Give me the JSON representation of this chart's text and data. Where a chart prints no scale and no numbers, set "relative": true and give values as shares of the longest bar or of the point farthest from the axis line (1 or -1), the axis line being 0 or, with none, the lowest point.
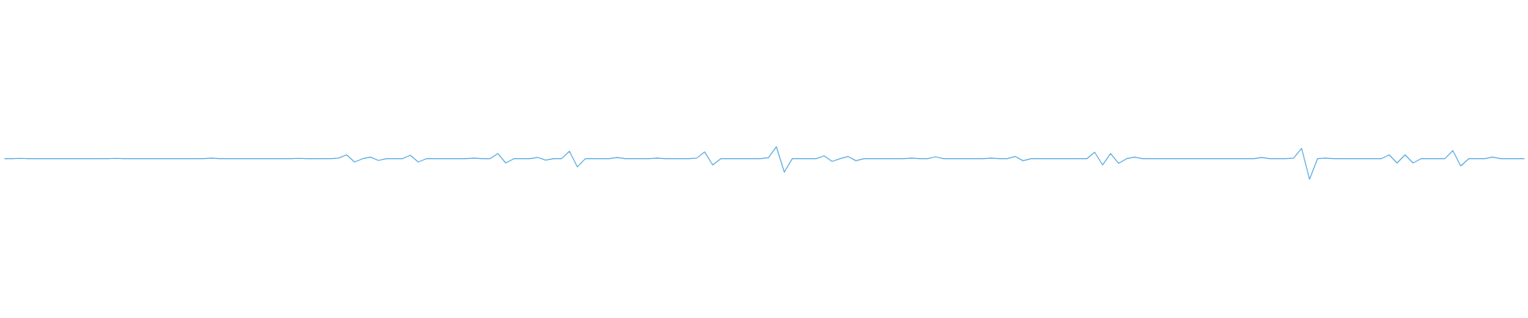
{
  "chart_data": {
    "type": "line",
    "relative": true,
    "tick_labels": false,
    "grid": false,
    "categories": [
      null,
      null,
      null,
      null,
      null,
      null,
      null,
      null,
      null,
      null,
      null,
      null,
      null,
      null,
      null,
      null,
      null,
      null,
      null,
      null,
      null,
      null,
      null,
      null,
      null,
      null,
      null,
      null,
      null,
      null,
      null,
      null,
      null,
      null,
      null,
      null,
      null,
      null,
      null,
      null,
      null,
      null,
      null,
      null,
      null,
      null,
      null,
      null,
      null,
      null,
      null,
      null,
      null,
      null,
      null,
      null,
      null,
      null,
      null,
      null,
      null,
      null,
      null,
      null,
      null,
      null,
      null,
      null,
      null,
      null,
      null,
      null,
      null,
      null,
      null,
      null,
      null,
      null,
      null,
      null,
      null,
      null,
      null,
      null,
      null,
      null,
      null,
      null,
      null,
      null,
      null,
      null,
      null,
      null,
      null,
      null,
      null,
      null,
      null,
      null,
      null,
      null,
      null,
      null,
      null,
      null,
      null,
      null,
      null,
      null,
      null,
      null,
      null,
      null,
      null,
      null,
      null,
      null,
      null,
      null,
      null,
      null,
      null,
      null,
      null,
      null,
      null,
      null,
      null,
      null,
      null,
      null,
      null,
      null,
      null,
      null,
      null,
      null,
      null,
      null,
      null,
      null,
      null,
      null,
      null,
      null,
      null,
      null,
      null,
      null,
      null,
      null,
      null,
      null,
      null,
      null,
      null,
      null,
      null,
      null,
      null,
      null,
      null,
      null,
      null,
      null,
      null,
      null,
      null,
      null,
      null,
      null,
      null,
      null,
      null,
      null,
      null,
      null,
      null,
      null,
      null,
      null,
      null,
      null,
      null,
      null,
      null,
      null,
      null,
      null,
      null,
      null
    ],
    "series": [
      {
        "color": "#5dade2",
        "values": [
          0.63,
          0.63,
          0.64,
          0.63,
          0.63,
          0.63,
          0.63,
          0.63,
          0.63,
          0.63,
          0.63,
          0.63,
          0.63,
          0.63,
          0.64,
          0.63,
          0.63,
          0.63,
          0.63,
          0.63,
          0.63,
          0.63,
          0.63,
          0.63,
          0.63,
          0.63,
          0.65,
          0.63,
          0.63,
          0.63,
          0.63,
          0.63,
          0.63,
          0.63,
          0.63,
          0.63,
          0.63,
          0.64,
          0.63,
          0.63,
          0.63,
          0.63,
          0.65,
          0.75,
          0.53,
          0.63,
          0.68,
          0.58,
          0.63,
          0.63,
          0.63,
          0.74,
          0.53,
          0.63,
          0.63,
          0.63,
          0.63,
          0.63,
          0.63,
          0.65,
          0.63,
          0.63,
          0.79,
          0.5,
          0.63,
          0.63,
          0.63,
          0.67,
          0.59,
          0.63,
          0.63,
          0.86,
          0.38,
          0.63,
          0.63,
          0.63,
          0.63,
          0.67,
          0.63,
          0.63,
          0.63,
          0.63,
          0.65,
          0.63,
          0.63,
          0.63,
          0.63,
          0.65,
          0.84,
          0.44,
          0.63,
          0.63,
          0.63,
          0.63,
          0.63,
          0.63,
          0.66,
          1,
          0.22,
          0.63,
          0.63,
          0.63,
          0.63,
          0.72,
          0.55,
          0.63,
          0.7,
          0.57,
          0.63,
          0.63,
          0.63,
          0.63,
          0.63,
          0.63,
          0.65,
          0.63,
          0.63,
          0.69,
          0.63,
          0.63,
          0.63,
          0.63,
          0.63,
          0.63,
          0.65,
          0.63,
          0.63,
          0.7,
          0.57,
          0.63,
          0.63,
          0.63,
          0.63,
          0.63,
          0.63,
          0.63,
          0.63,
          0.83,
          0.44,
          0.79,
          0.49,
          0.63,
          0.68,
          0.63,
          0.63,
          0.63,
          0.63,
          0.63,
          0.63,
          0.63,
          0.63,
          0.63,
          0.63,
          0.63,
          0.63,
          0.63,
          0.63,
          0.63,
          0.67,
          0.63,
          0.63,
          0.63,
          0.65,
          0.95,
          0,
          0.63,
          0.65,
          0.63,
          0.63,
          0.63,
          0.63,
          0.63,
          0.63,
          0.63,
          0.75,
          0.5,
          0.75,
          0.5,
          0.63,
          0.63,
          0.63,
          0.63,
          0.88,
          0.41,
          0.63,
          0.63,
          0.63,
          0.68,
          0.63,
          0.63,
          0.63,
          0.63
        ]
      }
    ]
  }
}
